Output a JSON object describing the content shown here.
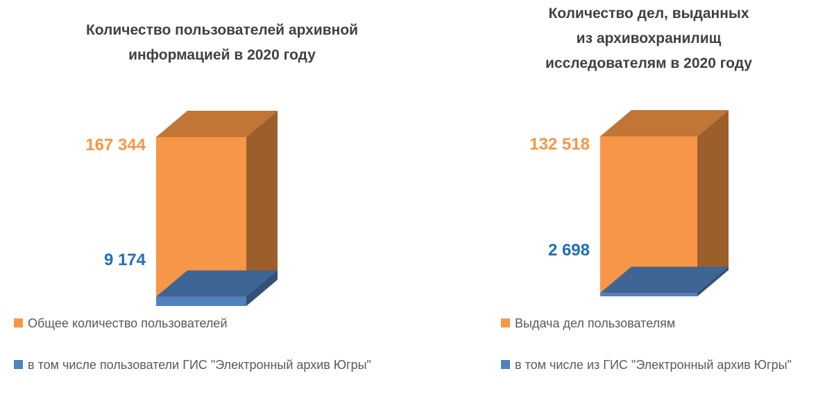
{
  "chart_data": [
    {
      "type": "bar",
      "title": [
        "Количество пользователей архивной",
        "информацией в 2020 году"
      ],
      "series": [
        {
          "name": "Общее количество пользователей",
          "color": "#f79646",
          "values": [
            167344
          ],
          "value_labels": [
            "167 344"
          ]
        },
        {
          "name": "в том числе пользователи ГИС \"Электронный архив Югры\"",
          "color": "#4f81bd",
          "values": [
            9174
          ],
          "value_labels": [
            "9 174"
          ]
        }
      ]
    },
    {
      "type": "bar",
      "title": [
        "Количество дел, выданных",
        "из архивохранилищ",
        "исследователям в 2020 году"
      ],
      "series": [
        {
          "name": "Выдача дел пользователям",
          "color": "#f79646",
          "values": [
            132518
          ],
          "value_labels": [
            "132 518"
          ]
        },
        {
          "name": "в том числе из ГИС \"Электронный архив Югры\"",
          "color": "#4f81bd",
          "values": [
            2698
          ],
          "value_labels": [
            "2 698"
          ]
        }
      ]
    }
  ]
}
